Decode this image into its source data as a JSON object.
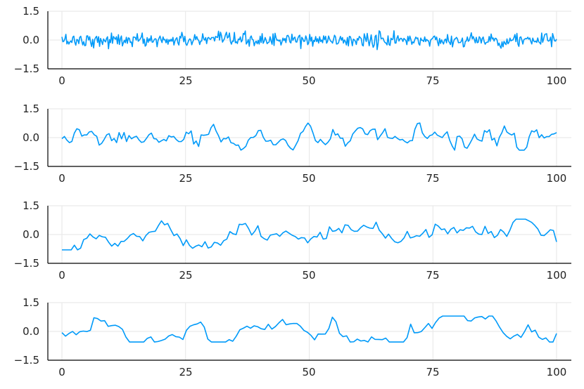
{
  "chart_data": [
    {
      "type": "line",
      "x_range": [
        0,
        100
      ],
      "ylim": [
        -1.5,
        1.5
      ],
      "xticks": [
        "0",
        "25",
        "50",
        "75",
        "100"
      ],
      "yticks": [
        "1.5",
        "0.0",
        "−1.5"
      ],
      "xtick_values": [
        0,
        25,
        50,
        75,
        100
      ],
      "ytick_values": [
        1.5,
        0,
        -1.5
      ],
      "grid": true,
      "series": [
        {
          "color": "#009af9",
          "x": [
            0,
            100
          ],
          "points": 500,
          "style": "white noise",
          "amplitude": 0.18,
          "shown_range": [
            -0.72,
            0.6
          ]
        }
      ]
    },
    {
      "type": "line",
      "x_range": [
        0,
        100
      ],
      "ylim": [
        -1.5,
        1.5
      ],
      "xticks": [
        "0",
        "25",
        "50",
        "75",
        "100"
      ],
      "yticks": [
        "1.5",
        "0.0",
        "−1.5"
      ],
      "xtick_values": [
        0,
        25,
        50,
        75,
        100
      ],
      "ytick_values": [
        1.5,
        0,
        -1.5
      ],
      "grid": true,
      "series": [
        {
          "color": "#009af9",
          "x": [
            0,
            100
          ],
          "points": 200,
          "style": "smoothed noise",
          "amplitude": 0.32,
          "shown_range": [
            -0.65,
            0.8
          ]
        }
      ]
    },
    {
      "type": "line",
      "x_range": [
        0,
        100
      ],
      "ylim": [
        -1.5,
        1.5
      ],
      "xticks": [
        "0",
        "25",
        "50",
        "75",
        "100"
      ],
      "yticks": [
        "1.5",
        "0.0",
        "−1.5"
      ],
      "xtick_values": [
        0,
        25,
        50,
        75,
        100
      ],
      "ytick_values": [
        1.5,
        0,
        -1.5
      ],
      "grid": true,
      "series": [
        {
          "color": "#009af9",
          "x": [
            0,
            100
          ],
          "points": 160,
          "style": "smoother noise",
          "amplitude": 0.4,
          "shown_range": [
            -0.8,
            0.8
          ]
        }
      ]
    },
    {
      "type": "line",
      "x_range": [
        0,
        100
      ],
      "ylim": [
        -1.5,
        1.5
      ],
      "xticks": [
        "0",
        "25",
        "50",
        "75",
        "100"
      ],
      "yticks": [
        "1.5",
        "0.0",
        "−1.5"
      ],
      "xtick_values": [
        0,
        25,
        50,
        75,
        100
      ],
      "ytick_values": [
        1.5,
        0,
        -1.5
      ],
      "grid": true,
      "series": [
        {
          "color": "#009af9",
          "x": [
            0,
            100
          ],
          "points": 140,
          "style": "heavily smoothed noise",
          "amplitude": 0.5,
          "shown_range": [
            -0.55,
            0.8
          ]
        }
      ]
    }
  ]
}
